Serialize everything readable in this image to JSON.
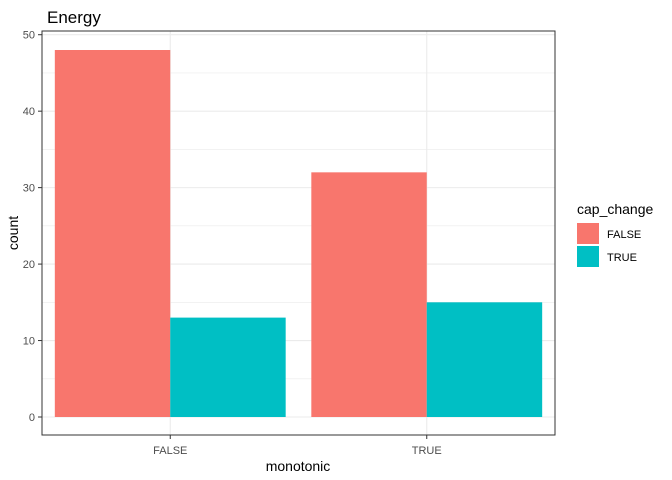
{
  "chart_data": {
    "type": "bar",
    "title": "Energy",
    "xlabel": "monotonic",
    "ylabel": "count",
    "categories": [
      "FALSE",
      "TRUE"
    ],
    "series": [
      {
        "name": "FALSE",
        "values": [
          48,
          32
        ],
        "color": "#F8766D"
      },
      {
        "name": "TRUE",
        "values": [
          13,
          15
        ],
        "color": "#00BFC4"
      }
    ],
    "ylim": [
      0,
      50
    ],
    "yticks": [
      0,
      10,
      20,
      30,
      40,
      50
    ],
    "grid": true,
    "legend": {
      "title": "cap_change",
      "placement": "right"
    }
  }
}
